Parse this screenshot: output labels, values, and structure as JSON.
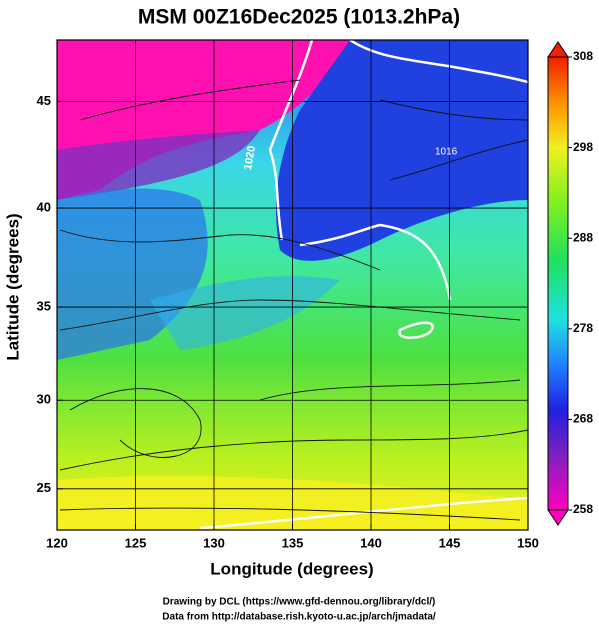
{
  "map": {
    "title": "MSM 00Z16Dec2025 (1013.2hPa)",
    "x_label": "Longitude (degrees)",
    "y_label": "Latitude  (degrees)",
    "xlim": [
      120,
      150
    ],
    "ylim": [
      22.6,
      47.7
    ],
    "xticks": [
      120,
      125,
      130,
      135,
      140,
      145,
      150
    ],
    "yticks": [
      25,
      30,
      35,
      40,
      45
    ],
    "contour_labels": [
      "1020",
      "1016"
    ],
    "colorbar": {
      "lim": [
        258,
        308
      ],
      "ticks": [
        258,
        268,
        278,
        288,
        298,
        308
      ]
    },
    "credits": [
      "Drawing by DCL (https://www.gfd-dennou.org/library/dcl/)",
      "Data from http://database.rish.kyoto-u.ac.jp/arch/jmadata/"
    ]
  }
}
